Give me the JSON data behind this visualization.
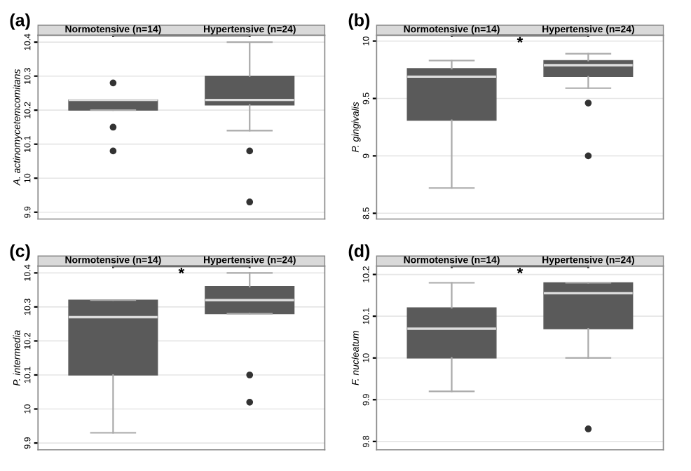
{
  "chart_data": [
    {
      "type": "box",
      "title": "(a)",
      "ylabel": "A. actinomycetemcomitans",
      "categories": [
        "Normotensive (n=14)",
        "Hypertensive (n=24)"
      ],
      "ylim": [
        9.88,
        10.42
      ],
      "yticks": [
        9.9,
        10,
        10.1,
        10.2,
        10.3,
        10.4
      ],
      "grid": "y",
      "color": "#5a5a5a",
      "boxes": [
        {
          "low": 10.2,
          "q1": 10.2,
          "median": 10.23,
          "q3": 10.23,
          "high": 10.23,
          "outliers": [
            10.28,
            10.15,
            10.08
          ]
        },
        {
          "low": 10.14,
          "q1": 10.215,
          "median": 10.23,
          "q3": 10.3,
          "high": 10.4,
          "outliers": [
            10.08,
            9.93
          ]
        }
      ]
    },
    {
      "type": "box",
      "title": "(b)",
      "ylabel": "P. gingivalis",
      "categories": [
        "Normotensive (n=14)",
        "Hypertensive (n=24)"
      ],
      "ylim": [
        8.45,
        10.05
      ],
      "yticks": [
        8.5,
        9,
        9.5,
        10
      ],
      "grid": "y",
      "color": "#5a5a5a",
      "annotations": [
        "*"
      ],
      "boxes": [
        {
          "low": 8.72,
          "q1": 9.31,
          "median": 9.69,
          "q3": 9.76,
          "high": 9.83
        },
        {
          "low": 9.59,
          "q1": 9.69,
          "median": 9.79,
          "q3": 9.83,
          "high": 9.89,
          "outliers": [
            9.46,
            9.0
          ]
        }
      ]
    },
    {
      "type": "box",
      "title": "(c)",
      "ylabel": "P. intermedia",
      "categories": [
        "Normotensive (n=14)",
        "Hypertensive (n=24)"
      ],
      "ylim": [
        9.88,
        10.42
      ],
      "yticks": [
        9.9,
        10,
        10.1,
        10.2,
        10.3,
        10.4
      ],
      "grid": "y",
      "color": "#5a5a5a",
      "annotations": [
        "*"
      ],
      "boxes": [
        {
          "low": 9.93,
          "q1": 10.1,
          "median": 10.27,
          "q3": 10.32,
          "high": 10.32
        },
        {
          "low": 10.28,
          "q1": 10.28,
          "median": 10.32,
          "q3": 10.36,
          "high": 10.4,
          "outliers": [
            10.1,
            10.02
          ]
        }
      ]
    },
    {
      "type": "box",
      "title": "(d)",
      "ylabel": "F. nucleatum",
      "categories": [
        "Normotensive (n=14)",
        "Hypertensive (n=24)"
      ],
      "ylim": [
        9.78,
        10.22
      ],
      "yticks": [
        9.8,
        9.9,
        10,
        10.1,
        10.2
      ],
      "grid": "y",
      "color": "#5a5a5a",
      "annotations": [
        "*"
      ],
      "boxes": [
        {
          "low": 9.92,
          "q1": 10.0,
          "median": 10.07,
          "q3": 10.12,
          "high": 10.18
        },
        {
          "low": 10.0,
          "q1": 10.07,
          "median": 10.155,
          "q3": 10.18,
          "high": 10.18,
          "outliers": [
            9.83
          ]
        }
      ]
    }
  ]
}
